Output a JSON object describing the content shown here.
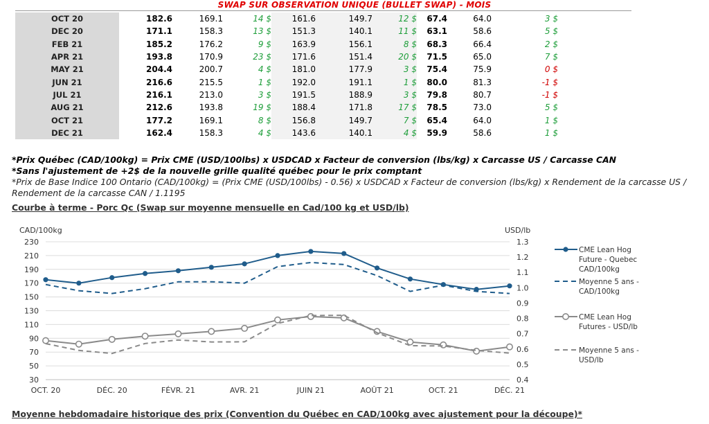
{
  "table": {
    "title": "SWAP SUR OBSERVATION UNIQUE (BULLET SWAP) - MOIS",
    "rows": [
      {
        "month": "OCT 20",
        "a": "182.6",
        "b": "169.1",
        "c": "14 $",
        "d": "161.6",
        "e": "149.7",
        "f": "12 $",
        "g": "67.4",
        "h": "64.0",
        "i": "3 $",
        "i_sign": "pos"
      },
      {
        "month": "DEC 20",
        "a": "171.1",
        "b": "158.3",
        "c": "13 $",
        "d": "151.3",
        "e": "140.1",
        "f": "11 $",
        "g": "63.1",
        "h": "58.6",
        "i": "5 $",
        "i_sign": "pos"
      },
      {
        "month": "FEB 21",
        "a": "185.2",
        "b": "176.2",
        "c": "9 $",
        "d": "163.9",
        "e": "156.1",
        "f": "8 $",
        "g": "68.3",
        "h": "66.4",
        "i": "2 $",
        "i_sign": "pos"
      },
      {
        "month": "APR 21",
        "a": "193.8",
        "b": "170.9",
        "c": "23 $",
        "d": "171.6",
        "e": "151.4",
        "f": "20 $",
        "g": "71.5",
        "h": "65.0",
        "i": "7 $",
        "i_sign": "pos"
      },
      {
        "month": "MAY 21",
        "a": "204.4",
        "b": "200.7",
        "c": "4 $",
        "d": "181.0",
        "e": "177.9",
        "f": "3 $",
        "g": "75.4",
        "h": "75.9",
        "i": "0 $",
        "i_sign": "neg"
      },
      {
        "month": "JUN 21",
        "a": "216.6",
        "b": "215.5",
        "c": "1 $",
        "d": "192.0",
        "e": "191.1",
        "f": "1 $",
        "g": "80.0",
        "h": "81.3",
        "i": "-1 $",
        "i_sign": "neg"
      },
      {
        "month": "JUL 21",
        "a": "216.1",
        "b": "213.0",
        "c": "3 $",
        "d": "191.5",
        "e": "188.9",
        "f": "3 $",
        "g": "79.8",
        "h": "80.7",
        "i": "-1 $",
        "i_sign": "neg"
      },
      {
        "month": "AUG 21",
        "a": "212.6",
        "b": "193.8",
        "c": "19 $",
        "d": "188.4",
        "e": "171.8",
        "f": "17 $",
        "g": "78.5",
        "h": "73.0",
        "i": "5 $",
        "i_sign": "pos"
      },
      {
        "month": "OCT 21",
        "a": "177.2",
        "b": "169.1",
        "c": "8 $",
        "d": "156.8",
        "e": "149.7",
        "f": "7 $",
        "g": "65.4",
        "h": "64.0",
        "i": "1 $",
        "i_sign": "pos"
      },
      {
        "month": "DEC 21",
        "a": "162.4",
        "b": "158.3",
        "c": "4 $",
        "d": "143.6",
        "e": "140.1",
        "f": "4 $",
        "g": "59.9",
        "h": "58.6",
        "i": "1 $",
        "i_sign": "pos"
      }
    ]
  },
  "notes": {
    "n1": "*Prix Québec (CAD/100kg) = Prix CME (USD/100lbs) x USDCAD x Facteur de conversion (lbs/kg) x Carcasse US / Carcasse CAN",
    "n2": "*Sans l'ajustement de +2$ de la nouvelle grille qualité québec pour le prix comptant",
    "n3": "*Prix de Base Indice 100 Ontario (CAD/100kg) = (Prix CME (USD/100lbs) - 0.56) x USDCAD x Facteur de conversion (lbs/kg) x Rendement de la carcasse US / Rendement de la carcasse CAN / 1.1195"
  },
  "section_heading": "Courbe à terme - Porc Qc (Swap sur moyenne mensuelle en Cad/100 kg et USD/lb)",
  "bottom_heading": "Moyenne hebdomadaire historique des prix (Convention du Québec en CAD/100kg avec ajustement pour la découpe)*",
  "chart_data": {
    "type": "line",
    "ylabel_left": "CAD/100kg",
    "ylabel_right": "USD/lb",
    "ylim_left": [
      30,
      230
    ],
    "ylim_right": [
      0.4,
      1.3
    ],
    "yticks_left": [
      "230",
      "210",
      "190",
      "170",
      "150",
      "130",
      "110",
      "90",
      "70",
      "50",
      "30"
    ],
    "yticks_right": [
      "1.3",
      "1.2",
      "1.1",
      "1.0",
      "0.9",
      "0.8",
      "0.7",
      "0.6",
      "0.5",
      "0.4"
    ],
    "x_ticks": [
      "OCT. 20",
      "DÉC. 20",
      "FÉVR. 21",
      "AVR. 21",
      "JUIN 21",
      "AOÛT 21",
      "OCT. 21",
      "DÉC. 21"
    ],
    "x_count": 15,
    "grid": true,
    "legend_position": "right",
    "series": [
      {
        "name": "CME Lean Hog Future - Quebec CAD/100kg",
        "axis": "left",
        "color": "#1f5c8b",
        "style": "solid",
        "marker": "filled",
        "values": [
          175,
          170,
          178,
          184,
          188,
          193,
          198,
          210,
          216,
          213,
          192,
          176,
          168,
          161,
          166
        ]
      },
      {
        "name": "Moyenne 5 ans - CAD/100kg",
        "axis": "left",
        "color": "#1f5c8b",
        "style": "dashed",
        "marker": "none",
        "values": [
          168,
          159,
          155,
          162,
          172,
          172,
          170,
          194,
          200,
          197,
          181,
          158,
          167,
          158,
          155
        ]
      },
      {
        "name": "CME Lean Hog Futures - USD/lb",
        "axis": "right",
        "color": "#8a8a8a",
        "style": "solid",
        "marker": "hollow",
        "values": [
          0.655,
          0.632,
          0.663,
          0.684,
          0.699,
          0.715,
          0.735,
          0.79,
          0.812,
          0.803,
          0.715,
          0.646,
          0.627,
          0.586,
          0.614
        ]
      },
      {
        "name": "Moyenne 5 ans - USD/lb",
        "axis": "right",
        "color": "#8a8a8a",
        "style": "dashed",
        "marker": "none",
        "values": [
          0.635,
          0.591,
          0.571,
          0.636,
          0.659,
          0.646,
          0.647,
          0.767,
          0.819,
          0.82,
          0.706,
          0.622,
          0.62,
          0.591,
          0.573
        ]
      }
    ]
  }
}
